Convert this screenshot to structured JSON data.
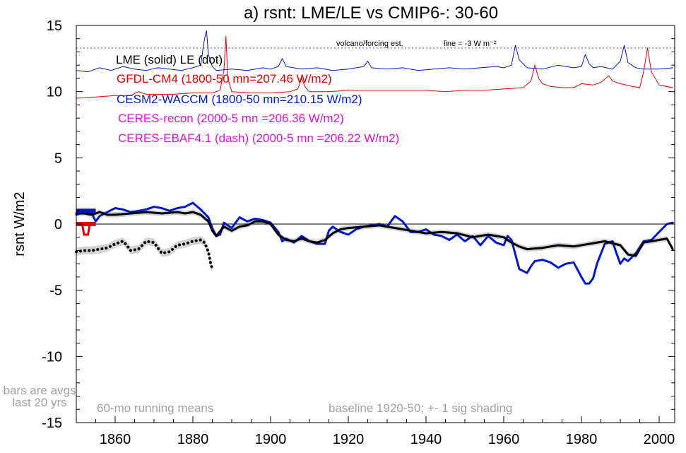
{
  "chart_data": {
    "type": "line",
    "title": "a) rsnt: LME/LE vs CMIP6-: 30-60",
    "ylabel": "rsnt W/m2",
    "xlim": [
      1850,
      2004
    ],
    "ylim": [
      -15,
      15
    ],
    "x_ticks": [
      1860,
      1880,
      1900,
      1920,
      1940,
      1960,
      1980,
      2000
    ],
    "y_ticks": [
      15,
      10,
      5,
      0,
      -5,
      -10,
      -15
    ],
    "y_tick_labels": [
      "15",
      "10",
      "5",
      "0",
      "-5",
      "-10",
      "-15"
    ],
    "zero_line": true,
    "reference_line": {
      "y": 13.3,
      "style": "dotted",
      "label": "volcano/forcing est.",
      "label2": "line = -3 W m⁻²"
    },
    "legend": [
      {
        "text": "LME (solid)   LE (dot)",
        "color": "#000000"
      },
      {
        "text": "GFDL-CM4 (1800-50 mn=207.46 W/m2)",
        "color": "#e00000"
      },
      {
        "text": "CESM2-WACCM (1800-50 mn=210.15 W/m2)",
        "color": "#0018c8"
      },
      {
        "text": "CERES-recon (2000-5 mn =206.36 W/m2)",
        "color": "#e010d8"
      },
      {
        "text": "CERES-EBAF4.1 (dash) (2000-5 mn =206.22 W/m2)",
        "color": "#e010d8"
      }
    ],
    "notes": {
      "bars": "bars are avgs\nlast 20 yrs",
      "running": "60-mo running means",
      "baseline": "baseline 1920-50; +- 1 sig shading"
    },
    "colors": {
      "lme": "#000000",
      "gfdl": "#e00000",
      "cesm": "#0018c8",
      "shade": "#c8c8c8",
      "note": "#a0a0a0"
    },
    "series": [
      {
        "name": "CESM2-WACCM",
        "color": "#0018c8",
        "x": [
          1850,
          1852,
          1854,
          1855,
          1856,
          1858,
          1860,
          1862,
          1864,
          1866,
          1868,
          1870,
          1872,
          1874,
          1876,
          1878,
          1880,
          1882,
          1884,
          1885,
          1886,
          1887,
          1888,
          1890,
          1892,
          1894,
          1896,
          1898,
          1900,
          1902,
          1903,
          1904,
          1906,
          1908,
          1910,
          1912,
          1914,
          1915,
          1916,
          1918,
          1920,
          1922,
          1924,
          1926,
          1928,
          1930,
          1932,
          1934,
          1936,
          1938,
          1940,
          1942,
          1944,
          1946,
          1948,
          1950,
          1952,
          1954,
          1956,
          1958,
          1960,
          1961,
          1962,
          1964,
          1966,
          1967,
          1968,
          1970,
          1972,
          1974,
          1976,
          1978,
          1980,
          1981,
          1982,
          1983,
          1984,
          1986,
          1988,
          1989,
          1990,
          1991,
          1992,
          1994,
          1996,
          1998,
          2000,
          2002,
          2003.5
        ],
        "values": [
          0.7,
          0.9,
          0.8,
          0.2,
          0.6,
          0.9,
          1.2,
          1.1,
          0.9,
          1.0,
          1.1,
          1.3,
          1.2,
          1.0,
          1.2,
          1.3,
          1.6,
          1.1,
          0.5,
          -0.3,
          -0.9,
          -0.8,
          0.1,
          -0.3,
          0.5,
          0.2,
          0.4,
          0.3,
          0.1,
          -0.6,
          -1.3,
          -1.1,
          -1.4,
          -0.9,
          -1.3,
          -1.5,
          -1.5,
          -0.5,
          -0.2,
          -0.6,
          -0.8,
          -0.4,
          -0.2,
          -0.1,
          0.0,
          -0.2,
          0.6,
          0.2,
          -0.6,
          -0.6,
          -0.4,
          -0.8,
          -0.9,
          -1.2,
          -0.8,
          -1.3,
          -0.9,
          -1.6,
          -0.9,
          -1.4,
          -1.6,
          -0.9,
          -1.2,
          -3.4,
          -3.7,
          -3.2,
          -2.8,
          -2.7,
          -2.9,
          -3.3,
          -3.0,
          -2.9,
          -4.0,
          -4.5,
          -4.5,
          -4.1,
          -3.0,
          -1.5,
          -1.3,
          -2.2,
          -3.0,
          -2.6,
          -2.8,
          -2.2,
          -1.3,
          -1.2,
          -0.6,
          0.0,
          0.1
        ]
      },
      {
        "name": "LME",
        "color": "#000000",
        "x": [
          1850,
          1852,
          1854,
          1856,
          1858,
          1860,
          1864,
          1868,
          1872,
          1876,
          1878,
          1880,
          1882,
          1884,
          1885,
          1886,
          1888,
          1890,
          1892,
          1894,
          1896,
          1898,
          1900,
          1902,
          1904,
          1906,
          1908,
          1910,
          1912,
          1914,
          1916,
          1918,
          1920,
          1924,
          1928,
          1932,
          1936,
          1940,
          1944,
          1948,
          1952,
          1956,
          1958,
          1960,
          1962,
          1964,
          1966,
          1970,
          1974,
          1978,
          1982,
          1986,
          1990,
          1992,
          1994,
          1996,
          1998,
          2000,
          2002,
          2003.5
        ],
        "values": [
          0.8,
          0.8,
          0.7,
          0.9,
          0.7,
          0.7,
          0.8,
          0.9,
          0.8,
          0.9,
          0.8,
          0.9,
          0.7,
          0.2,
          -0.5,
          -0.9,
          -0.2,
          -0.5,
          -0.2,
          -0.1,
          0.2,
          0.2,
          0.0,
          -0.8,
          -1.2,
          -1.3,
          -1.1,
          -1.3,
          -1.4,
          -1.2,
          -0.7,
          -0.4,
          -0.3,
          -0.2,
          -0.1,
          -0.3,
          -0.5,
          -0.7,
          -0.6,
          -0.7,
          -1.0,
          -0.8,
          -0.9,
          -1.0,
          -1.4,
          -1.7,
          -1.9,
          -1.8,
          -1.6,
          -1.7,
          -1.5,
          -1.3,
          -1.6,
          -2.3,
          -2.4,
          -1.4,
          -1.3,
          -1.2,
          -1.1,
          -1.9
        ]
      },
      {
        "name": "LE",
        "color": "#000000",
        "dotted": true,
        "x": [
          1850,
          1852,
          1854,
          1856,
          1858,
          1860,
          1862,
          1863,
          1864,
          1866,
          1868,
          1870,
          1872,
          1874,
          1876,
          1878,
          1880,
          1882,
          1883,
          1884,
          1884.5,
          1885
        ],
        "values": [
          -2.1,
          -2.0,
          -2.0,
          -1.9,
          -1.8,
          -1.5,
          -1.3,
          -1.6,
          -2.0,
          -1.9,
          -1.3,
          -1.4,
          -2.2,
          -2.1,
          -1.6,
          -1.5,
          -1.3,
          -1.2,
          -1.4,
          -2.1,
          -2.9,
          -3.4
        ]
      },
      {
        "name": "GFDL-CM4 (offset)",
        "color": "#e00000",
        "x": [
          1850,
          1855,
          1860,
          1864,
          1866,
          1868,
          1870,
          1875,
          1880,
          1885,
          1887,
          1888,
          1888.5,
          1889,
          1890,
          1895,
          1900,
          1905,
          1907,
          1908,
          1909,
          1910,
          1915,
          1920,
          1925,
          1930,
          1935,
          1940,
          1945,
          1950,
          1955,
          1960,
          1965,
          1967,
          1968,
          1969,
          1970,
          1972,
          1975,
          1978,
          1980,
          1983,
          1985,
          1987,
          1988,
          1990,
          1993,
          1995,
          1996,
          1997,
          1998,
          2000,
          2003.5
        ],
        "values": [
          9.5,
          9.6,
          9.7,
          9.7,
          10.0,
          9.8,
          9.8,
          9.8,
          9.9,
          9.9,
          10.1,
          11.6,
          14.2,
          11.0,
          10.0,
          9.9,
          9.9,
          10.0,
          10.2,
          11.0,
          10.3,
          10.0,
          10.0,
          10.1,
          10.1,
          10.1,
          10.1,
          10.1,
          10.0,
          10.1,
          10.1,
          10.2,
          10.3,
          10.8,
          12.0,
          11.0,
          10.6,
          10.4,
          10.3,
          10.3,
          10.6,
          10.5,
          10.7,
          11.2,
          10.8,
          10.6,
          10.4,
          10.3,
          11.5,
          13.3,
          11.5,
          10.5,
          10.3
        ]
      },
      {
        "name": "CESM2-WACCM (offset)",
        "color": "#0018c8",
        "x": [
          1850,
          1853,
          1856,
          1859,
          1862,
          1865,
          1868,
          1871,
          1874,
          1877,
          1880,
          1882,
          1883,
          1883.5,
          1884,
          1885,
          1886,
          1890,
          1894,
          1898,
          1900,
          1902,
          1903,
          1904,
          1908,
          1912,
          1916,
          1920,
          1924,
          1925,
          1926,
          1930,
          1934,
          1938,
          1942,
          1946,
          1950,
          1954,
          1958,
          1960,
          1962,
          1963,
          1964,
          1966,
          1970,
          1974,
          1978,
          1980,
          1981,
          1982,
          1983,
          1985,
          1988,
          1990,
          1991,
          1992,
          1994,
          1996,
          2000,
          2003.5
        ],
        "values": [
          11.6,
          11.5,
          11.8,
          11.6,
          11.9,
          11.7,
          11.6,
          11.8,
          11.7,
          11.6,
          11.8,
          12.0,
          14.0,
          14.6,
          12.8,
          11.9,
          11.6,
          11.7,
          11.6,
          11.8,
          11.7,
          11.9,
          12.5,
          11.9,
          11.7,
          11.8,
          11.6,
          11.7,
          11.9,
          12.3,
          11.8,
          11.7,
          11.8,
          11.6,
          11.7,
          11.8,
          11.7,
          11.8,
          11.9,
          11.8,
          12.0,
          13.5,
          12.4,
          11.8,
          11.7,
          12.0,
          11.8,
          11.9,
          12.8,
          12.1,
          11.8,
          11.9,
          11.7,
          12.3,
          13.5,
          12.2,
          11.8,
          11.7,
          11.7,
          11.8
        ]
      }
    ],
    "shading": {
      "lme_upper": [
        1.0,
        1.0,
        0.9,
        1.1,
        0.9,
        0.9,
        1.0,
        1.1,
        1.0,
        1.1,
        1.0,
        1.1,
        0.9,
        0.4,
        -0.3,
        -0.7,
        0.0,
        -0.3,
        0.0,
        0.1,
        0.4,
        0.4,
        0.2,
        -0.6,
        -1.0,
        -1.1,
        -0.9,
        -1.1,
        -1.2,
        -1.0,
        -0.5,
        -0.2,
        -0.1,
        0.0,
        0.1,
        -0.1,
        -0.3,
        -0.5,
        -0.4,
        -0.5,
        -0.8,
        -0.6,
        -0.7,
        -0.8,
        -1.2,
        -1.5,
        -1.7,
        -1.6,
        -1.4,
        -1.5,
        -1.3,
        -1.1,
        -1.4,
        -2.1,
        -2.2,
        -1.2,
        -1.1,
        -1.0,
        -0.9,
        -1.7
      ],
      "lme_lower": [
        0.6,
        0.6,
        0.5,
        0.7,
        0.5,
        0.5,
        0.6,
        0.7,
        0.6,
        0.7,
        0.6,
        0.7,
        0.5,
        0.0,
        -0.7,
        -1.1,
        -0.4,
        -0.7,
        -0.4,
        -0.3,
        0.0,
        0.0,
        -0.2,
        -1.0,
        -1.4,
        -1.5,
        -1.3,
        -1.5,
        -1.6,
        -1.4,
        -0.9,
        -0.6,
        -0.5,
        -0.4,
        -0.3,
        -0.5,
        -0.7,
        -0.9,
        -0.8,
        -0.9,
        -1.2,
        -1.0,
        -1.1,
        -1.2,
        -1.6,
        -1.9,
        -2.1,
        -2.0,
        -1.8,
        -1.9,
        -1.7,
        -1.5,
        -1.8,
        -2.5,
        -2.6,
        -1.6,
        -1.5,
        -1.4,
        -1.3,
        -2.1
      ],
      "le_upper": [
        -1.8,
        -1.7,
        -1.7,
        -1.6,
        -1.5,
        -1.2,
        -1.0,
        -1.3,
        -1.7,
        -1.6,
        -1.0,
        -1.1,
        -1.9,
        -1.8,
        -1.3,
        -1.2,
        -1.0,
        -0.9,
        -1.1,
        -1.8,
        -2.6,
        -3.1
      ],
      "le_lower": [
        -2.4,
        -2.3,
        -2.3,
        -2.2,
        -2.1,
        -1.8,
        -1.6,
        -1.9,
        -2.3,
        -2.2,
        -1.6,
        -1.7,
        -2.5,
        -2.4,
        -1.9,
        -1.8,
        -1.6,
        -1.5,
        -1.7,
        -2.4,
        -3.2,
        -3.7
      ]
    },
    "bars": [
      {
        "color": "#0018c8",
        "x0": 1850,
        "x1": 1855,
        "y": 1.0
      },
      {
        "color": "#e00000",
        "x0": 1850,
        "x1": 1855,
        "y": 0.0
      }
    ],
    "red_bar_dip": {
      "x": [
        1851.5,
        1852,
        1853,
        1853.5
      ],
      "values": [
        0.0,
        -0.8,
        -0.8,
        0.0
      ]
    }
  }
}
